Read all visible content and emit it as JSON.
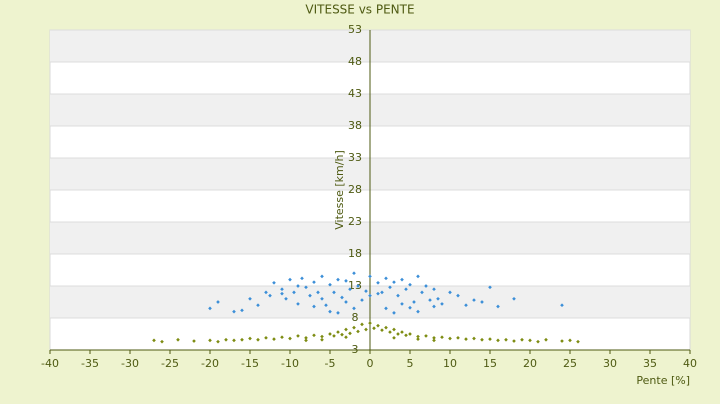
{
  "chart_data": {
    "type": "scatter",
    "title": "VITESSE vs PENTE",
    "x_label": "Pente [%]",
    "y_label": "Vitesse [km/h]",
    "xlim": [
      -40,
      40
    ],
    "xticks": [
      -40,
      -35,
      -30,
      -25,
      -20,
      -15,
      -10,
      -5,
      0,
      5,
      10,
      15,
      20,
      25,
      30,
      35,
      40
    ],
    "ylim": [
      3,
      53
    ],
    "yticks": [
      3,
      8,
      13,
      18,
      23,
      28,
      33,
      38,
      43,
      48,
      53
    ],
    "grid": true,
    "series": [
      {
        "color": "#3c8fd8",
        "x": [
          -20,
          -19,
          -17,
          -16,
          -15,
          -14,
          -13,
          -12.5,
          -12,
          -11,
          -10.5,
          -10,
          -9.5,
          -9,
          -8.5,
          -8,
          -7.5,
          -7,
          -6.5,
          -6,
          -5.5,
          -5,
          -4.5,
          -4,
          -3.5,
          -3,
          -2.5,
          -2,
          -1.5,
          -1,
          -0.5,
          -7,
          -5,
          -3,
          -9,
          -11,
          -4,
          -2,
          -6,
          0,
          0,
          1,
          1.5,
          2,
          2.5,
          3,
          3.5,
          4,
          4.5,
          5,
          5.5,
          6,
          6.5,
          7,
          7.5,
          8,
          8.5,
          9,
          10,
          11,
          12,
          13,
          14,
          15,
          16,
          18,
          24,
          2,
          4,
          6,
          3,
          5,
          8,
          1
        ],
        "values": [
          9.5,
          10.5,
          9,
          9.2,
          11,
          10,
          12,
          11.5,
          13.5,
          12.5,
          11,
          14,
          12,
          13,
          14.2,
          12.8,
          11.5,
          13.6,
          12,
          14.5,
          10,
          13.2,
          12,
          14,
          11.2,
          13.8,
          12.5,
          15,
          13,
          10.8,
          12.2,
          9.8,
          9,
          10.5,
          10.2,
          11.8,
          8.8,
          9.5,
          11,
          14.5,
          11.5,
          13.5,
          12,
          14.2,
          12.8,
          13.6,
          11.5,
          14,
          12.5,
          13.2,
          10.5,
          14.5,
          12,
          13,
          10.8,
          12.5,
          11,
          10.2,
          12,
          11.5,
          10,
          10.8,
          10.5,
          12.8,
          9.8,
          11,
          10,
          9.5,
          10.2,
          9,
          8.8,
          9.6,
          9.8,
          11.8
        ]
      },
      {
        "color": "#7d8c12",
        "x": [
          -27,
          -26,
          -24,
          -22,
          -20,
          -19,
          -18,
          -17,
          -16,
          -15,
          -14,
          -13,
          -12,
          -11,
          -10,
          -9,
          -8,
          -7,
          -6,
          -5,
          -4.5,
          -4,
          -3.5,
          -3,
          -2.5,
          -2,
          -1.5,
          -1,
          -0.5,
          0,
          0.5,
          1,
          1.5,
          2,
          2.5,
          3,
          3.5,
          4,
          4.5,
          5,
          6,
          7,
          8,
          9,
          10,
          11,
          12,
          13,
          14,
          15,
          16,
          17,
          18,
          19,
          20,
          21,
          22,
          24,
          25,
          26,
          -6,
          -3,
          3,
          6,
          -8,
          8
        ],
        "values": [
          4.5,
          4.3,
          4.6,
          4.4,
          4.5,
          4.3,
          4.6,
          4.5,
          4.6,
          4.8,
          4.6,
          4.9,
          4.7,
          5,
          4.8,
          5.2,
          4.9,
          5.3,
          5.1,
          5.5,
          5.2,
          5.8,
          5.4,
          6.2,
          5.6,
          6.5,
          5.9,
          7,
          6.2,
          7.2,
          6.4,
          6.8,
          6.1,
          6.5,
          5.8,
          6.2,
          5.5,
          5.8,
          5.3,
          5.5,
          5.1,
          5.2,
          4.9,
          5,
          4.8,
          4.9,
          4.7,
          4.8,
          4.6,
          4.7,
          4.5,
          4.6,
          4.4,
          4.6,
          4.5,
          4.3,
          4.6,
          4.4,
          4.5,
          4.3,
          4.6,
          5,
          4.9,
          4.7,
          4.5,
          4.5
        ]
      }
    ]
  }
}
